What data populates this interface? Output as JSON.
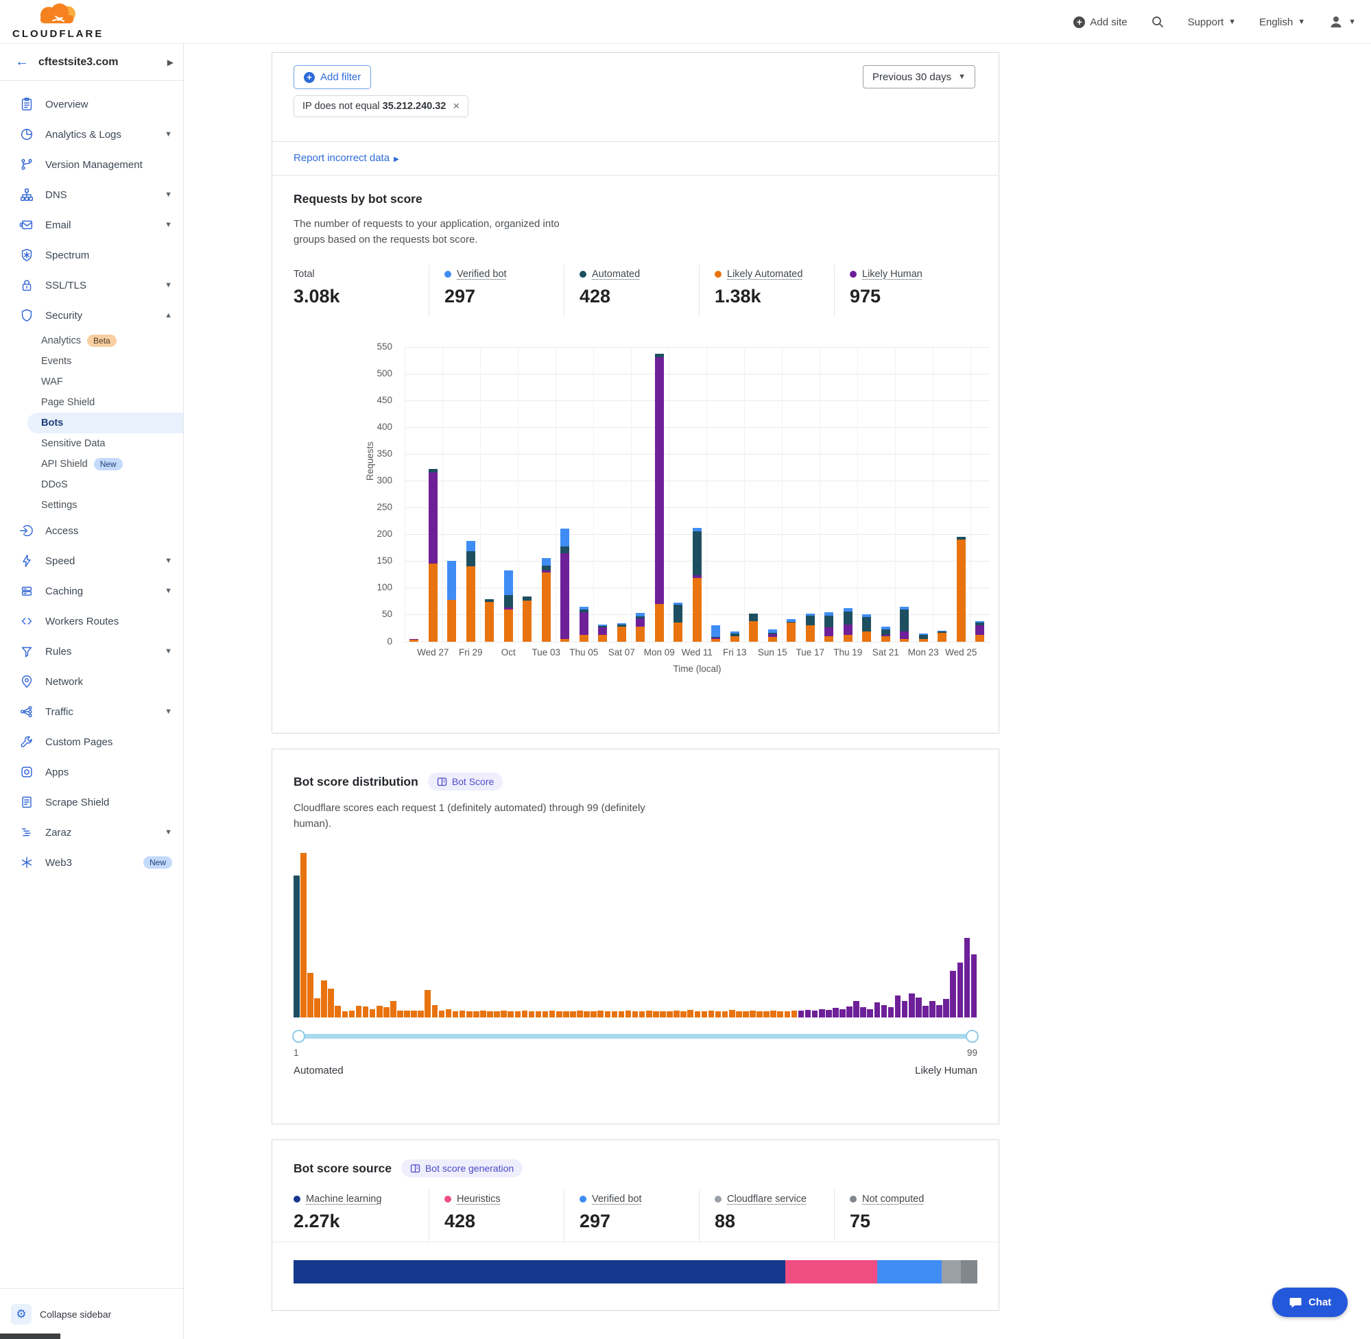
{
  "header": {
    "brand": "CLOUDFLARE",
    "add_site": "Add site",
    "support": "Support",
    "language": "English"
  },
  "sidebar": {
    "site": "cftestsite3.com",
    "items": [
      {
        "label": "Overview",
        "icon": "clipboard-icon"
      },
      {
        "label": "Analytics & Logs",
        "icon": "pie-chart-icon",
        "chevron": "down"
      },
      {
        "label": "Version Management",
        "icon": "branch-icon"
      },
      {
        "label": "DNS",
        "icon": "network-tree-icon",
        "chevron": "down"
      },
      {
        "label": "Email",
        "icon": "envelope-icon",
        "chevron": "down"
      },
      {
        "label": "Spectrum",
        "icon": "shield-star-icon"
      },
      {
        "label": "SSL/TLS",
        "icon": "padlock-icon",
        "chevron": "down"
      },
      {
        "label": "Security",
        "icon": "shield-icon",
        "chevron": "up",
        "children": [
          {
            "label": "Analytics",
            "badge": "Beta",
            "badge_style": "beta"
          },
          {
            "label": "Events"
          },
          {
            "label": "WAF"
          },
          {
            "label": "Page Shield"
          },
          {
            "label": "Bots",
            "active": true
          },
          {
            "label": "Sensitive Data"
          },
          {
            "label": "API Shield",
            "badge": "New",
            "badge_style": "new"
          },
          {
            "label": "DDoS"
          },
          {
            "label": "Settings"
          }
        ]
      },
      {
        "label": "Access",
        "icon": "login-arrow-icon"
      },
      {
        "label": "Speed",
        "icon": "lightning-icon",
        "chevron": "down"
      },
      {
        "label": "Caching",
        "icon": "server-stack-icon",
        "chevron": "down"
      },
      {
        "label": "Workers Routes",
        "icon": "code-brackets-icon"
      },
      {
        "label": "Rules",
        "icon": "funnel-icon",
        "chevron": "down"
      },
      {
        "label": "Network",
        "icon": "map-pin-icon"
      },
      {
        "label": "Traffic",
        "icon": "share-nodes-icon",
        "chevron": "down"
      },
      {
        "label": "Custom Pages",
        "icon": "wrench-icon"
      },
      {
        "label": "Apps",
        "icon": "app-box-icon"
      },
      {
        "label": "Scrape Shield",
        "icon": "document-icon"
      },
      {
        "label": "Zaraz",
        "icon": "zaraz-lines-icon",
        "chevron": "down"
      },
      {
        "label": "Web3",
        "icon": "snowflake-icon",
        "badge": "New",
        "badge_style": "new"
      }
    ],
    "collapse_label": "Collapse sidebar"
  },
  "filters": {
    "add_filter": "Add filter",
    "chip_prefix": "IP does not equal",
    "chip_value": "35.212.240.32",
    "range": "Previous 30 days"
  },
  "report_link": "Report incorrect data",
  "requests_section": {
    "title": "Requests by bot score",
    "description": "The number of requests to your application, organized into groups based on the requests bot score.",
    "stats": [
      {
        "label": "Total",
        "value": "3.08k",
        "color": ""
      },
      {
        "label": "Verified bot",
        "value": "297",
        "color": "#3F8DF4"
      },
      {
        "label": "Automated",
        "value": "428",
        "color": "#1D4F60"
      },
      {
        "label": "Likely Automated",
        "value": "1.38k",
        "color": "#E8730F"
      },
      {
        "label": "Likely Human",
        "value": "975",
        "color": "#6E2099"
      }
    ],
    "chart_data": {
      "type": "bar",
      "stacked": true,
      "title": "Requests by bot score",
      "xlabel": "Time (local)",
      "ylabel": "Requests",
      "ylim": [
        0,
        550
      ],
      "ytick_step": 50,
      "grid": true,
      "tick_labels": [
        "Wed 27",
        "Fri 29",
        "Oct",
        "Tue 03",
        "Thu 05",
        "Sat 07",
        "Mon 09",
        "Wed 11",
        "Fri 13",
        "Sun 15",
        "Tue 17",
        "Thu 19",
        "Sat 21",
        "Mon 23",
        "Wed 25"
      ],
      "series": [
        {
          "name": "Likely Automated",
          "color": "#E8730F",
          "values": [
            3,
            145,
            78,
            140,
            74,
            60,
            76,
            128,
            5,
            12,
            12,
            27,
            27,
            70,
            35,
            118,
            4,
            10,
            38,
            8,
            35,
            30,
            10,
            12,
            18,
            10,
            4,
            4,
            16,
            190,
            12
          ]
        },
        {
          "name": "Likely Human",
          "color": "#6E2099",
          "values": [
            2,
            170,
            0,
            0,
            0,
            3,
            0,
            5,
            160,
            42,
            14,
            0,
            16,
            460,
            0,
            5,
            3,
            0,
            0,
            5,
            0,
            0,
            16,
            20,
            0,
            2,
            14,
            0,
            0,
            0,
            18
          ]
        },
        {
          "name": "Automated",
          "color": "#1D4F60",
          "values": [
            0,
            7,
            0,
            28,
            5,
            24,
            8,
            8,
            12,
            6,
            3,
            4,
            4,
            7,
            33,
            82,
            1,
            5,
            14,
            3,
            2,
            18,
            22,
            24,
            28,
            10,
            42,
            8,
            3,
            5,
            5
          ]
        },
        {
          "name": "Verified bot",
          "color": "#3F8DF4",
          "values": [
            0,
            0,
            72,
            20,
            0,
            45,
            0,
            14,
            33,
            5,
            3,
            3,
            6,
            0,
            4,
            7,
            22,
            4,
            0,
            6,
            4,
            4,
            7,
            6,
            4,
            5,
            4,
            3,
            1,
            0,
            3
          ]
        }
      ]
    }
  },
  "distribution_section": {
    "title": "Bot score distribution",
    "badge": "Bot Score",
    "description": "Cloudflare scores each request 1 (definitely automated) through 99 (definitely human).",
    "slider": {
      "min_label": "1",
      "max_label": "99",
      "min_caption": "Automated",
      "max_caption": "Likely Human"
    },
    "chart_data": {
      "type": "bar",
      "subtype": "histogram",
      "x_range": [
        1,
        99
      ],
      "note": "relative bar heights, 1.0 = tallest bar (score 2)",
      "color_breaks": [
        {
          "up_to": 1,
          "color": "#1D4F60",
          "name": "Automated"
        },
        {
          "up_to": 73,
          "color": "#E8730F",
          "name": "Likely Automated"
        },
        {
          "up_to": 99,
          "color": "#6E2099",
          "name": "Likely Human"
        }
      ],
      "values": [
        0.86,
        1,
        0.27,
        0.115,
        0.225,
        0.175,
        0.07,
        0.035,
        0.04,
        0.07,
        0.065,
        0.05,
        0.07,
        0.06,
        0.1,
        0.04,
        0.04,
        0.04,
        0.04,
        0.165,
        0.075,
        0.04,
        0.05,
        0.035,
        0.04,
        0.035,
        0.035,
        0.04,
        0.035,
        0.035,
        0.04,
        0.035,
        0.035,
        0.04,
        0.035,
        0.035,
        0.035,
        0.04,
        0.035,
        0.035,
        0.035,
        0.04,
        0.035,
        0.035,
        0.04,
        0.035,
        0.035,
        0.035,
        0.04,
        0.035,
        0.035,
        0.04,
        0.035,
        0.035,
        0.035,
        0.04,
        0.035,
        0.045,
        0.035,
        0.035,
        0.04,
        0.035,
        0.035,
        0.045,
        0.035,
        0.035,
        0.04,
        0.035,
        0.035,
        0.04,
        0.035,
        0.035,
        0.04,
        0.04,
        0.045,
        0.04,
        0.05,
        0.045,
        0.055,
        0.05,
        0.065,
        0.1,
        0.06,
        0.05,
        0.09,
        0.075,
        0.06,
        0.13,
        0.1,
        0.145,
        0.12,
        0.07,
        0.1,
        0.075,
        0.11,
        0.28,
        0.33,
        0.48,
        0.38
      ]
    }
  },
  "source_section": {
    "title": "Bot score source",
    "badge": "Bot score generation",
    "stats": [
      {
        "label": "Machine learning",
        "value": "2.27k",
        "color": "#16398E"
      },
      {
        "label": "Heuristics",
        "value": "428",
        "color": "#F04D82"
      },
      {
        "label": "Verified bot",
        "value": "297",
        "color": "#3F8DF4"
      },
      {
        "label": "Cloudflare service",
        "value": "88",
        "color": "#9AA0A6"
      },
      {
        "label": "Not computed",
        "value": "75",
        "color": "#81878D"
      }
    ],
    "chart_data": {
      "type": "bar",
      "subtype": "stacked-horizontal-percent",
      "segments": [
        {
          "name": "Machine learning",
          "color": "#16398E",
          "pct": 71.9
        },
        {
          "name": "Heuristics",
          "color": "#F04D82",
          "pct": 13.5
        },
        {
          "name": "Verified bot",
          "color": "#3F8DF4",
          "pct": 9.4
        },
        {
          "name": "Cloudflare service",
          "color": "#9AA0A6",
          "pct": 2.8
        },
        {
          "name": "Not computed",
          "color": "#81878D",
          "pct": 2.4
        }
      ]
    }
  },
  "chat_label": "Chat"
}
